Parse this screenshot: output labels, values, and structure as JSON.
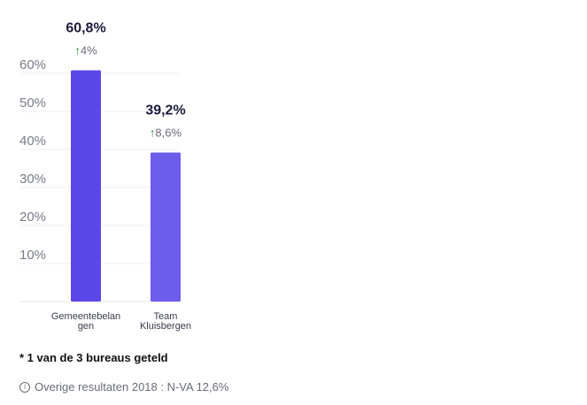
{
  "chart_data": {
    "type": "bar",
    "categories": [
      [
        "Gemeentebelan",
        "gen"
      ],
      [
        "Team",
        "Kluisbergen"
      ]
    ],
    "values": [
      60.8,
      39.2
    ],
    "value_labels": [
      "60,8%",
      "39,2%"
    ],
    "change_labels": [
      "4%",
      "8,6%"
    ],
    "change_direction": [
      "up",
      "up"
    ],
    "yticks": [
      10,
      20,
      30,
      40,
      50,
      60
    ],
    "ytick_labels": [
      "10%",
      "20%",
      "30%",
      "40%",
      "50%",
      "60%"
    ],
    "ylim": [
      0,
      60
    ],
    "grid": true,
    "colors": [
      "#5b47e8",
      "#6e5cec"
    ],
    "change_color": "#2e8b3e"
  },
  "footer": {
    "note": "* 1 van de 3 bureaus geteld",
    "other_results": "Overige resultaten 2018 : N-VA 12,6%",
    "info_icon": "i"
  }
}
